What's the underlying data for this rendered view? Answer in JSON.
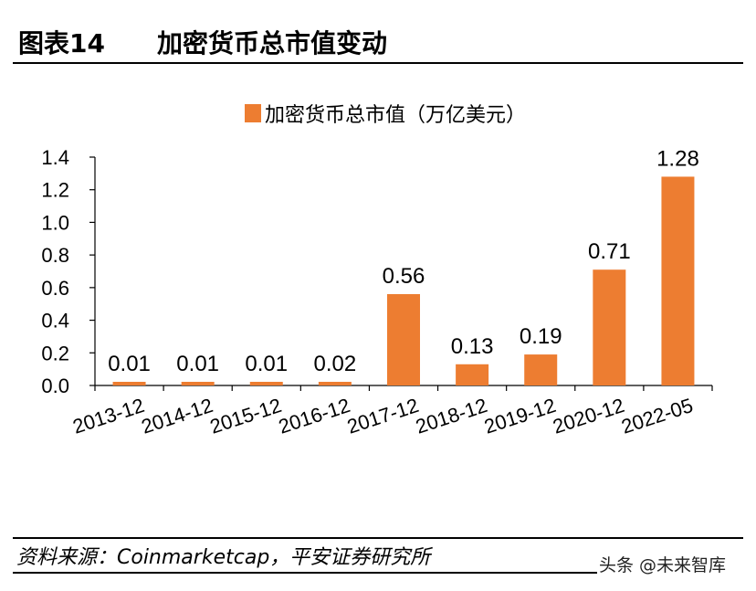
{
  "header": {
    "label": "图表14",
    "title": "加密货币总市值变动"
  },
  "source": "资料来源：Coinmarketcap，平安证券研究所",
  "watermark": "头条 @未来智库",
  "colors": {
    "bar": "#ED7D31",
    "axis": "#000000"
  },
  "chart_data": {
    "type": "bar",
    "title": "",
    "xlabel": "",
    "ylabel": "",
    "categories": [
      "2013-12",
      "2014-12",
      "2015-12",
      "2016-12",
      "2017-12",
      "2018-12",
      "2019-12",
      "2020-12",
      "2022-05"
    ],
    "series": [
      {
        "name": "加密货币总市值（万亿美元）",
        "values": [
          0.01,
          0.01,
          0.01,
          0.02,
          0.56,
          0.13,
          0.19,
          0.71,
          1.28
        ]
      }
    ],
    "data_labels": [
      "0.01",
      "0.01",
      "0.01",
      "0.02",
      "0.56",
      "0.13",
      "0.19",
      "0.71",
      "1.28"
    ],
    "ylim": [
      0,
      1.4
    ],
    "yticks": [
      "0.0",
      "0.2",
      "0.4",
      "0.6",
      "0.8",
      "1.0",
      "1.2",
      "1.4"
    ],
    "legend_position": "top",
    "grid": false
  }
}
